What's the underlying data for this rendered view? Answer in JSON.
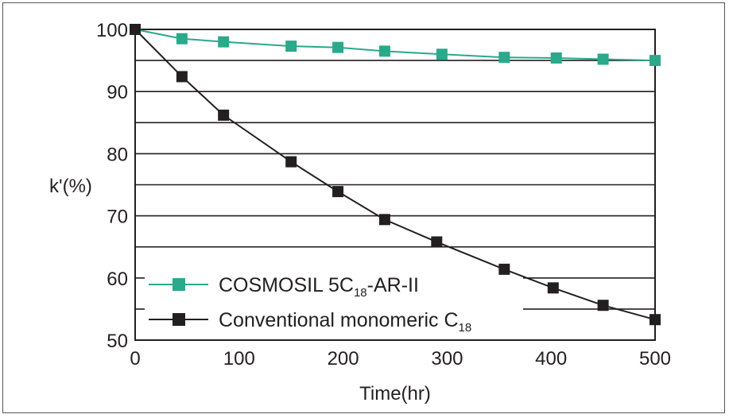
{
  "chart_data": {
    "type": "line",
    "title": "",
    "xlabel": "Time(hr)",
    "ylabel": "k'(%)",
    "xlim": [
      0,
      500
    ],
    "ylim": [
      50,
      100
    ],
    "x_ticks": [
      0,
      100,
      200,
      300,
      400,
      500
    ],
    "y_ticks": [
      50,
      60,
      70,
      80,
      90,
      100
    ],
    "grid": "horizontal",
    "legend_position": "bottom-left",
    "series": [
      {
        "name": "COSMOSIL 5C18-AR-II",
        "label_main": "COSMOSIL 5C",
        "label_sub": "18",
        "label_tail": "-AR-II",
        "color": "#2aa98b",
        "marker": "square",
        "x": [
          0,
          45,
          85,
          150,
          195,
          240,
          295,
          355,
          405,
          450,
          500
        ],
        "y": [
          100,
          98.5,
          98,
          97.3,
          97.1,
          96.5,
          96,
          95.5,
          95.4,
          95.2,
          95
        ]
      },
      {
        "name": "Conventional monomeric C18",
        "label_main": "Conventional monomeric C",
        "label_sub": "18",
        "label_tail": "",
        "color": "#231f20",
        "marker": "square",
        "x": [
          0,
          45,
          85,
          150,
          195,
          240,
          290,
          355,
          402,
          450,
          500
        ],
        "y": [
          100,
          92.4,
          86.2,
          78.7,
          73.9,
          69.4,
          65.8,
          61.4,
          58.4,
          55.6,
          53.3
        ]
      }
    ]
  }
}
